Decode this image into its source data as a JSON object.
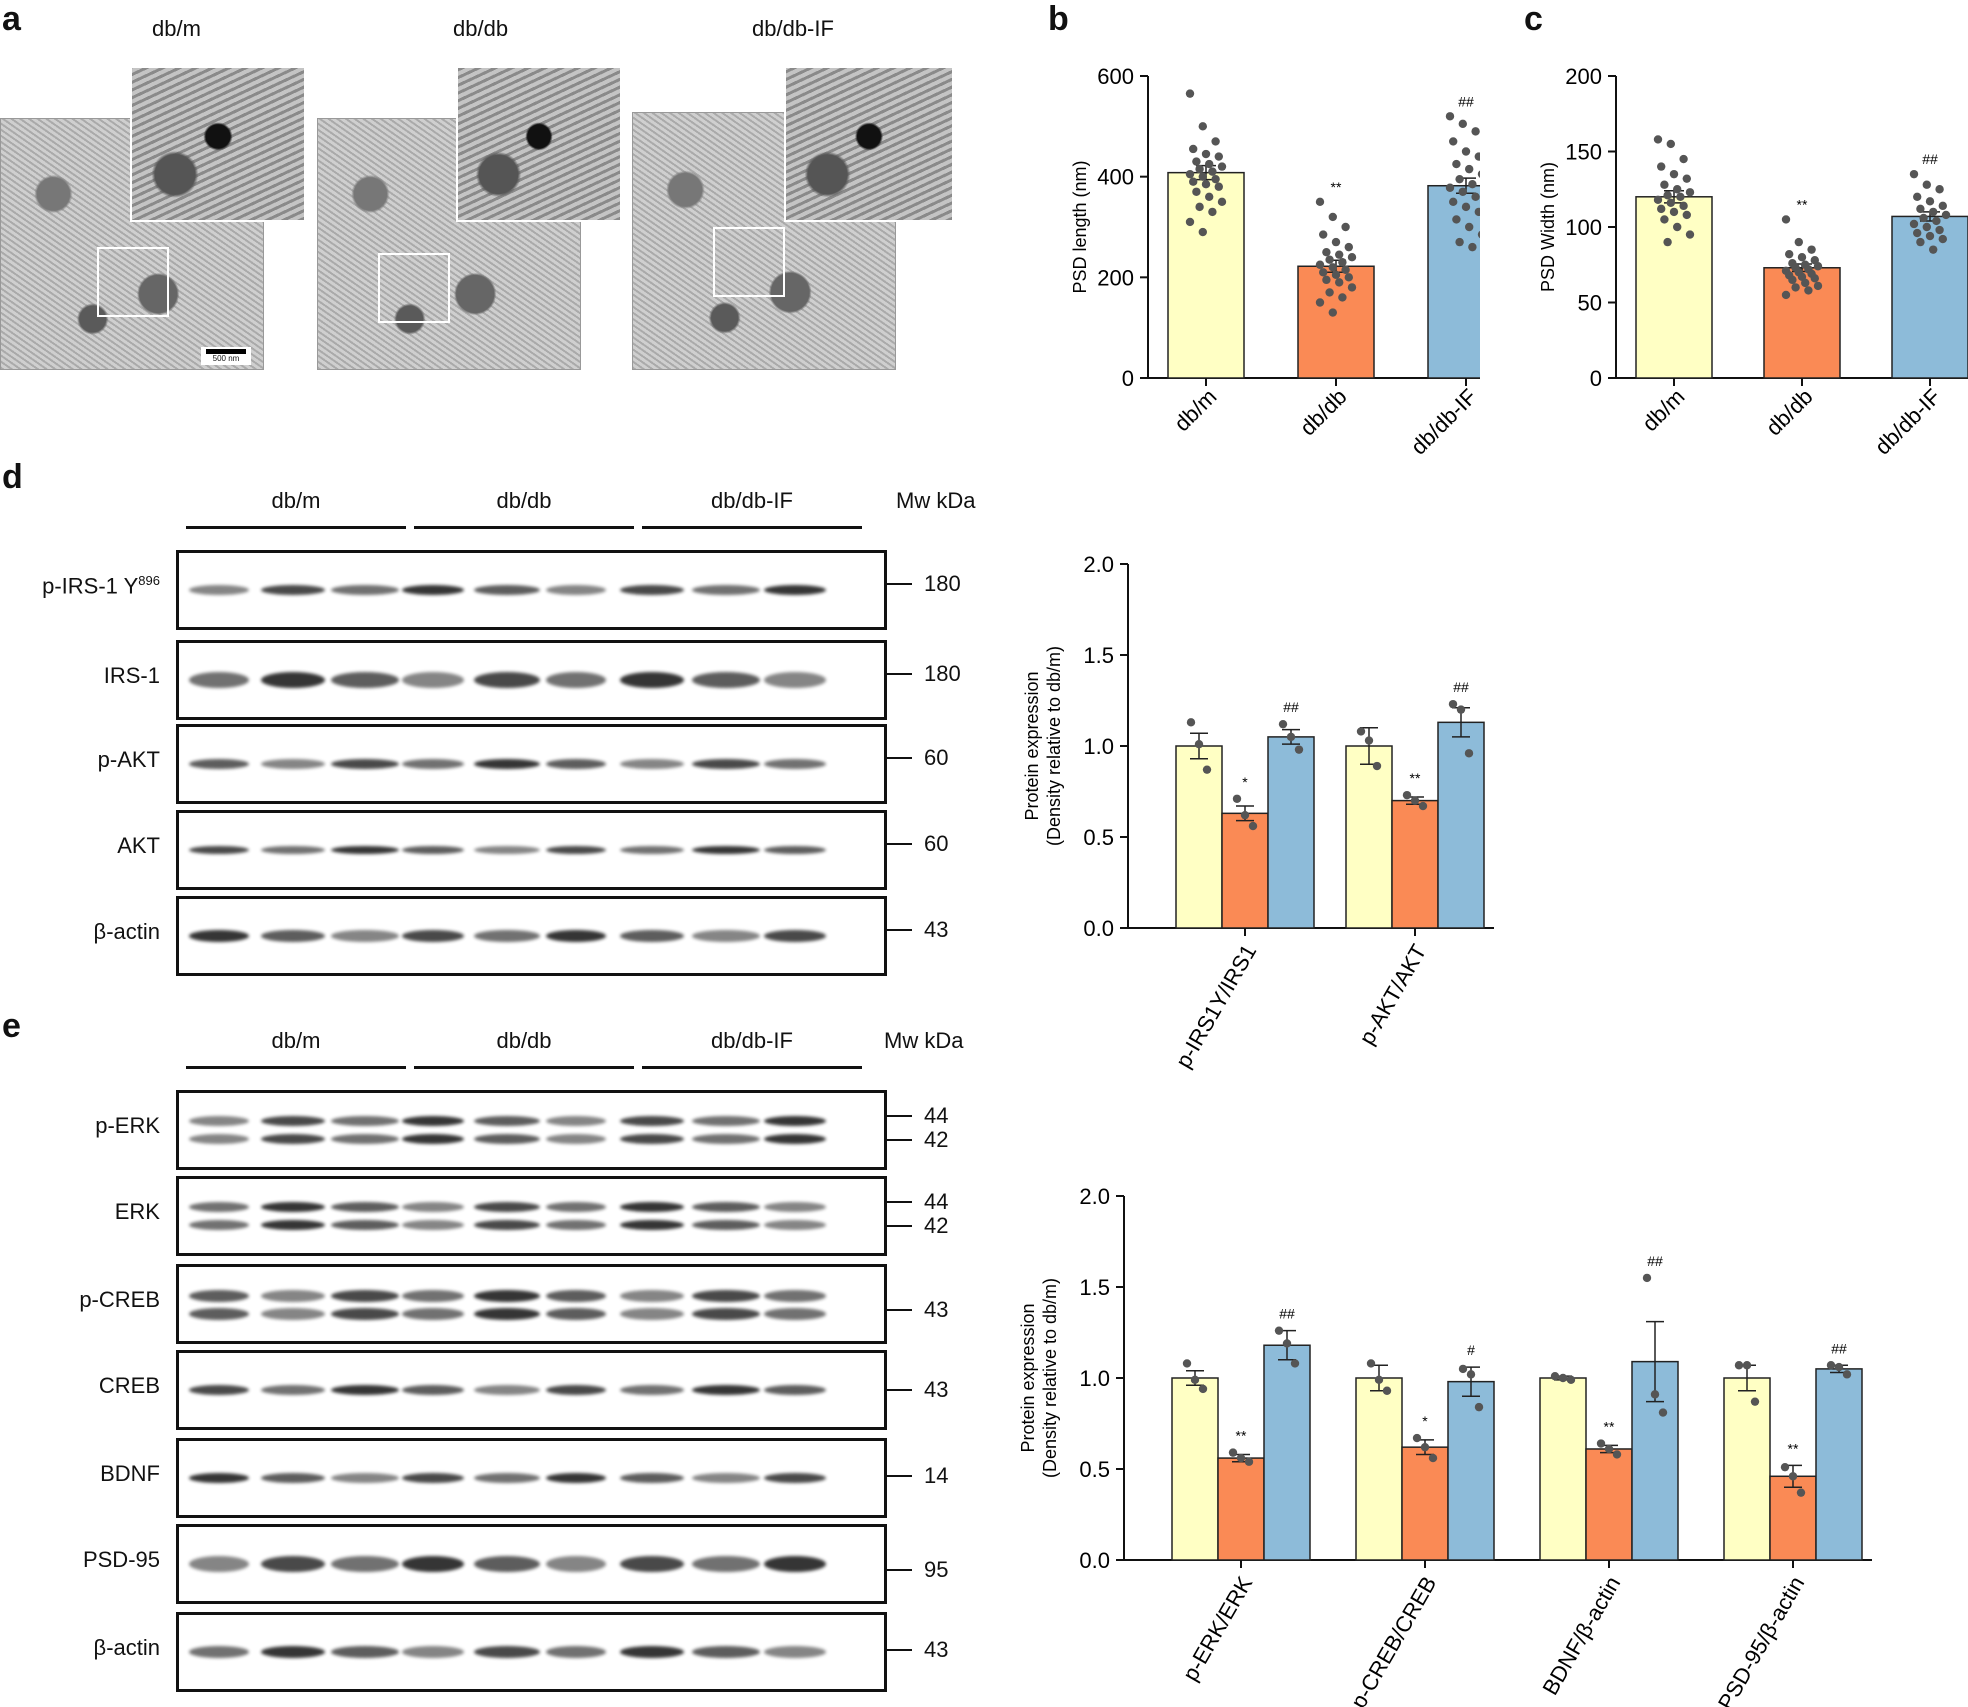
{
  "panels": {
    "a": "a",
    "b": "b",
    "c": "c",
    "d": "d",
    "e": "e"
  },
  "em": {
    "labels": [
      "db/m",
      "db/db",
      "db/db-IF"
    ],
    "scale_bar": "500 nm"
  },
  "blot_d": {
    "groups": [
      "db/m",
      "db/db",
      "db/db-IF"
    ],
    "mw_header": "Mw kDa",
    "rows": [
      {
        "label": "p-IRS-1 Y",
        "sup": "896",
        "mw": [
          "180"
        ]
      },
      {
        "label": "IRS-1",
        "mw": [
          "180"
        ]
      },
      {
        "label": "p-AKT",
        "mw": [
          "60"
        ]
      },
      {
        "label": "AKT",
        "mw": [
          "60"
        ]
      },
      {
        "label": "β-actin",
        "mw": [
          "43"
        ]
      }
    ]
  },
  "blot_e": {
    "groups": [
      "db/m",
      "db/db",
      "db/db-IF"
    ],
    "mw_header": "Mw kDa",
    "rows": [
      {
        "label": "p-ERK",
        "mw": [
          "44",
          "42"
        ]
      },
      {
        "label": "ERK",
        "mw": [
          "44",
          "42"
        ]
      },
      {
        "label": "p-CREB",
        "mw": [
          "43"
        ]
      },
      {
        "label": "CREB",
        "mw": [
          "43"
        ]
      },
      {
        "label": "BDNF",
        "mw": [
          "14"
        ]
      },
      {
        "label": "PSD-95",
        "mw": [
          "95"
        ]
      },
      {
        "label": "β-actin",
        "mw": [
          "43"
        ]
      }
    ]
  },
  "colors": {
    "db_m": "#FFFFC4",
    "db_db": "#FA8A55",
    "db_db_IF": "#8DBBD9",
    "points": "#555555"
  },
  "chart_data": [
    {
      "id": "b",
      "type": "bar",
      "categories": [
        "db/m",
        "db/db",
        "db/db-IF"
      ],
      "values": [
        408,
        222,
        382
      ],
      "errors": [
        14,
        12,
        15
      ],
      "ylabel": "PSD length (nm)",
      "ylim": [
        0,
        600
      ],
      "yticks": [
        0,
        200,
        400,
        600
      ],
      "annotations": [
        "",
        "**",
        "##"
      ],
      "points": [
        [
          565,
          500,
          470,
          455,
          445,
          440,
          430,
          425,
          420,
          415,
          410,
          405,
          400,
          395,
          390,
          385,
          380,
          370,
          360,
          350,
          340,
          330,
          310,
          290
        ],
        [
          350,
          320,
          300,
          285,
          270,
          260,
          250,
          245,
          240,
          235,
          230,
          225,
          220,
          215,
          210,
          205,
          200,
          195,
          190,
          180,
          170,
          160,
          150,
          130
        ],
        [
          520,
          505,
          490,
          470,
          450,
          440,
          425,
          415,
          405,
          395,
          385,
          378,
          370,
          360,
          350,
          340,
          330,
          315,
          300,
          285,
          270,
          260
        ]
      ]
    },
    {
      "id": "c",
      "type": "bar",
      "categories": [
        "db/m",
        "db/db",
        "db/db-IF"
      ],
      "values": [
        120,
        73,
        107
      ],
      "errors": [
        4,
        2.5,
        3
      ],
      "ylabel": "PSD Width (nm)",
      "ylim": [
        0,
        200
      ],
      "yticks": [
        0,
        50,
        100,
        150,
        200
      ],
      "annotations": [
        "",
        "**",
        "##"
      ],
      "points": [
        [
          158,
          155,
          145,
          140,
          135,
          132,
          128,
          125,
          123,
          121,
          120,
          118,
          116,
          114,
          112,
          110,
          108,
          105,
          100,
          95,
          90
        ],
        [
          105,
          90,
          85,
          82,
          80,
          78,
          76,
          75,
          74,
          73,
          72,
          71,
          70,
          69,
          68,
          67,
          66,
          65,
          63,
          61,
          60,
          58,
          55
        ],
        [
          135,
          128,
          125,
          120,
          117,
          114,
          112,
          110,
          108,
          106,
          104,
          102,
          100,
          98,
          96,
          94,
          92,
          90,
          85
        ]
      ]
    },
    {
      "id": "d",
      "type": "bar",
      "categories": [
        "p-IRS1Y/IRS1",
        "p-AKT/AKT"
      ],
      "series": [
        {
          "name": "db/m",
          "values": [
            1.0,
            1.0
          ],
          "errors": [
            0.07,
            0.1
          ],
          "points": [
            [
              1.13,
              1.01,
              0.87
            ],
            [
              1.08,
              1.03,
              0.89
            ]
          ]
        },
        {
          "name": "db/db",
          "values": [
            0.63,
            0.7
          ],
          "errors": [
            0.04,
            0.02
          ],
          "points": [
            [
              0.71,
              0.62,
              0.56
            ],
            [
              0.73,
              0.7,
              0.67
            ]
          ]
        },
        {
          "name": "db/db-IF",
          "values": [
            1.05,
            1.13
          ],
          "errors": [
            0.04,
            0.08
          ],
          "points": [
            [
              1.12,
              1.05,
              0.98
            ],
            [
              1.23,
              1.2,
              0.96
            ]
          ]
        }
      ],
      "annotations": [
        [
          "",
          "*",
          "##"
        ],
        [
          "",
          "**",
          "##"
        ]
      ],
      "ylabel": "Protein expression (Density relative to db/m)",
      "ylim": [
        0,
        2.0
      ],
      "yticks": [
        "0.0",
        "0.5",
        "1.0",
        "1.5",
        "2.0"
      ]
    },
    {
      "id": "e",
      "type": "bar",
      "categories": [
        "p-ERK/ERK",
        "p-CREB/CREB",
        "BDNF/β-actin",
        "PSD-95/β-actin"
      ],
      "series": [
        {
          "name": "db/m",
          "values": [
            1.0,
            1.0,
            1.0,
            1.0
          ],
          "errors": [
            0.04,
            0.07,
            0.01,
            0.07
          ],
          "points": [
            [
              1.08,
              0.99,
              0.94
            ],
            [
              1.08,
              0.99,
              0.93
            ],
            [
              1.01,
              1.0,
              0.99
            ],
            [
              1.07,
              1.07,
              0.87
            ]
          ]
        },
        {
          "name": "db/db",
          "values": [
            0.56,
            0.62,
            0.61,
            0.46
          ],
          "errors": [
            0.02,
            0.04,
            0.02,
            0.06
          ],
          "points": [
            [
              0.59,
              0.56,
              0.54
            ],
            [
              0.67,
              0.62,
              0.56
            ],
            [
              0.64,
              0.61,
              0.58
            ],
            [
              0.51,
              0.46,
              0.37
            ]
          ]
        },
        {
          "name": "db/db-IF",
          "values": [
            1.18,
            0.98,
            1.09,
            1.05
          ],
          "errors": [
            0.08,
            0.08,
            0.22,
            0.02
          ],
          "points": [
            [
              1.26,
              1.19,
              1.08
            ],
            [
              1.05,
              1.02,
              0.84
            ],
            [
              1.55,
              0.91,
              0.81
            ],
            [
              1.07,
              1.06,
              1.02
            ]
          ]
        }
      ],
      "annotations": [
        [
          "",
          "**",
          "##"
        ],
        [
          "",
          "*",
          "#"
        ],
        [
          "",
          "**",
          "##"
        ],
        [
          "",
          "**",
          "##"
        ]
      ],
      "ylabel": "Protein expression (Density relative to db/m)",
      "ylim": [
        0,
        2.0
      ],
      "yticks": [
        "0.0",
        "0.5",
        "1.0",
        "1.5",
        "2.0"
      ]
    }
  ]
}
